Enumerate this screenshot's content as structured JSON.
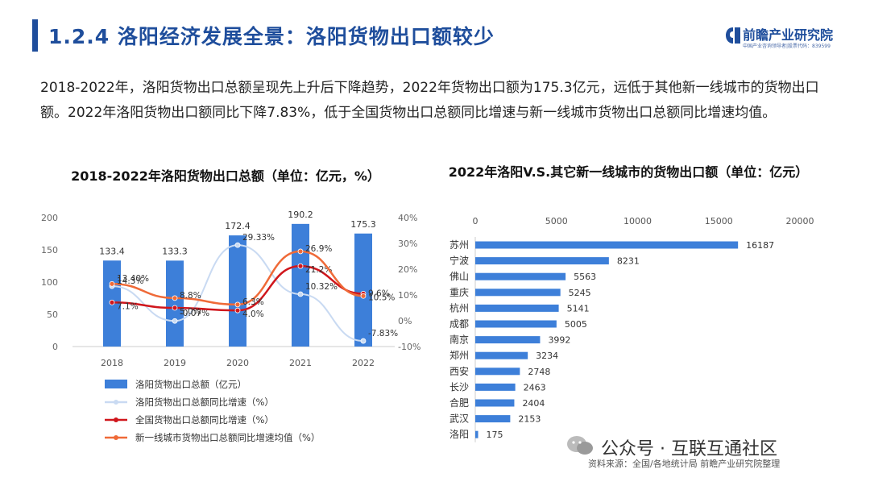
{
  "header": {
    "title": "1.2.4 洛阳经济发展全景：洛阳货物出口额较少",
    "logo_name": "前瞻产业研究院",
    "logo_sub": "中国产业咨询领导者|股票代码：839599"
  },
  "summary": "2018-2022年，洛阳货物出口总额呈现先上升后下降趋势，2022年货物出口额为175.3亿元，远低于其他新一线城市的货物出口额。2022年洛阳货物出口额同比下降7.83%，低于全国货物出口总额同比增速与新一线城市货物出口总额同比增速均值。",
  "colors": {
    "brand": "#1f4e9c",
    "bar": "#3d7fd9",
    "series_light": "#c9daf2",
    "series_red": "#d0161c",
    "series_orange": "#ef6a38"
  },
  "chart_data": [
    {
      "type": "bar",
      "title": "2018-2022年洛阳货物出口总额（单位：亿元，%）",
      "categories": [
        "2018",
        "2019",
        "2020",
        "2021",
        "2022"
      ],
      "ylim_left": [
        0,
        200
      ],
      "ylim_right": [
        -10,
        40
      ],
      "left_ticks": [
        "0",
        "50",
        "100",
        "150",
        "200"
      ],
      "right_ticks": [
        "-10%",
        "0%",
        "10%",
        "20%",
        "30%",
        "40%"
      ],
      "grid": false,
      "legend_position": "bottom",
      "series": [
        {
          "name": "洛阳货物出口总额（亿元）",
          "kind": "bar",
          "axis": "left",
          "color": "#3d7fd9",
          "values": [
            133.4,
            133.3,
            172.4,
            190.2,
            175.3
          ],
          "labels": [
            "133.4",
            "133.3",
            "172.4",
            "190.2",
            "175.3"
          ]
        },
        {
          "name": "洛阳货物出口总额同比增速（%）",
          "kind": "line",
          "axis": "right",
          "color": "#c9daf2",
          "values": [
            13.4,
            -0.07,
            29.33,
            10.32,
            -7.83
          ],
          "labels": [
            "13.40%",
            "-0.07%",
            "29.33%",
            "10.32%",
            "-7.83%"
          ]
        },
        {
          "name": "全国货物出口总额同比增速（%）",
          "kind": "line",
          "axis": "right",
          "color": "#d0161c",
          "values": [
            7.1,
            5.0,
            4.0,
            21.2,
            10.5
          ],
          "labels": [
            "7.1%",
            "5.0%",
            "4.0%",
            "21.2%",
            "10.5%"
          ]
        },
        {
          "name": "新一线城市货物出口总额同比增速均值（%）",
          "kind": "line",
          "axis": "right",
          "color": "#ef6a38",
          "values": [
            14.3,
            8.8,
            6.3,
            26.9,
            9.6
          ],
          "labels": [
            "14.3%",
            "8.8%",
            "6.3%",
            "26.9%",
            "9.6%"
          ]
        }
      ]
    },
    {
      "type": "bar",
      "orientation": "horizontal",
      "title": "2022年洛阳V.S.其它新一线城市的货物出口额（单位：亿元）",
      "categories": [
        "苏州",
        "宁波",
        "佛山",
        "重庆",
        "杭州",
        "成都",
        "南京",
        "郑州",
        "西安",
        "长沙",
        "合肥",
        "武汉",
        "洛阳"
      ],
      "values": [
        16187,
        8231,
        5563,
        5245,
        5141,
        5005,
        3992,
        3234,
        2748,
        2463,
        2404,
        2153,
        175
      ],
      "xlim": [
        0,
        20000
      ],
      "x_ticks": [
        "0",
        "5000",
        "10000",
        "15000",
        "20000"
      ],
      "color": "#3d7fd9",
      "grid": false
    }
  ],
  "footer": {
    "source": "资料来源：全国/各地统计局 前瞻产业研究院整理",
    "watermark": "公众号 · 互联互通社区"
  }
}
